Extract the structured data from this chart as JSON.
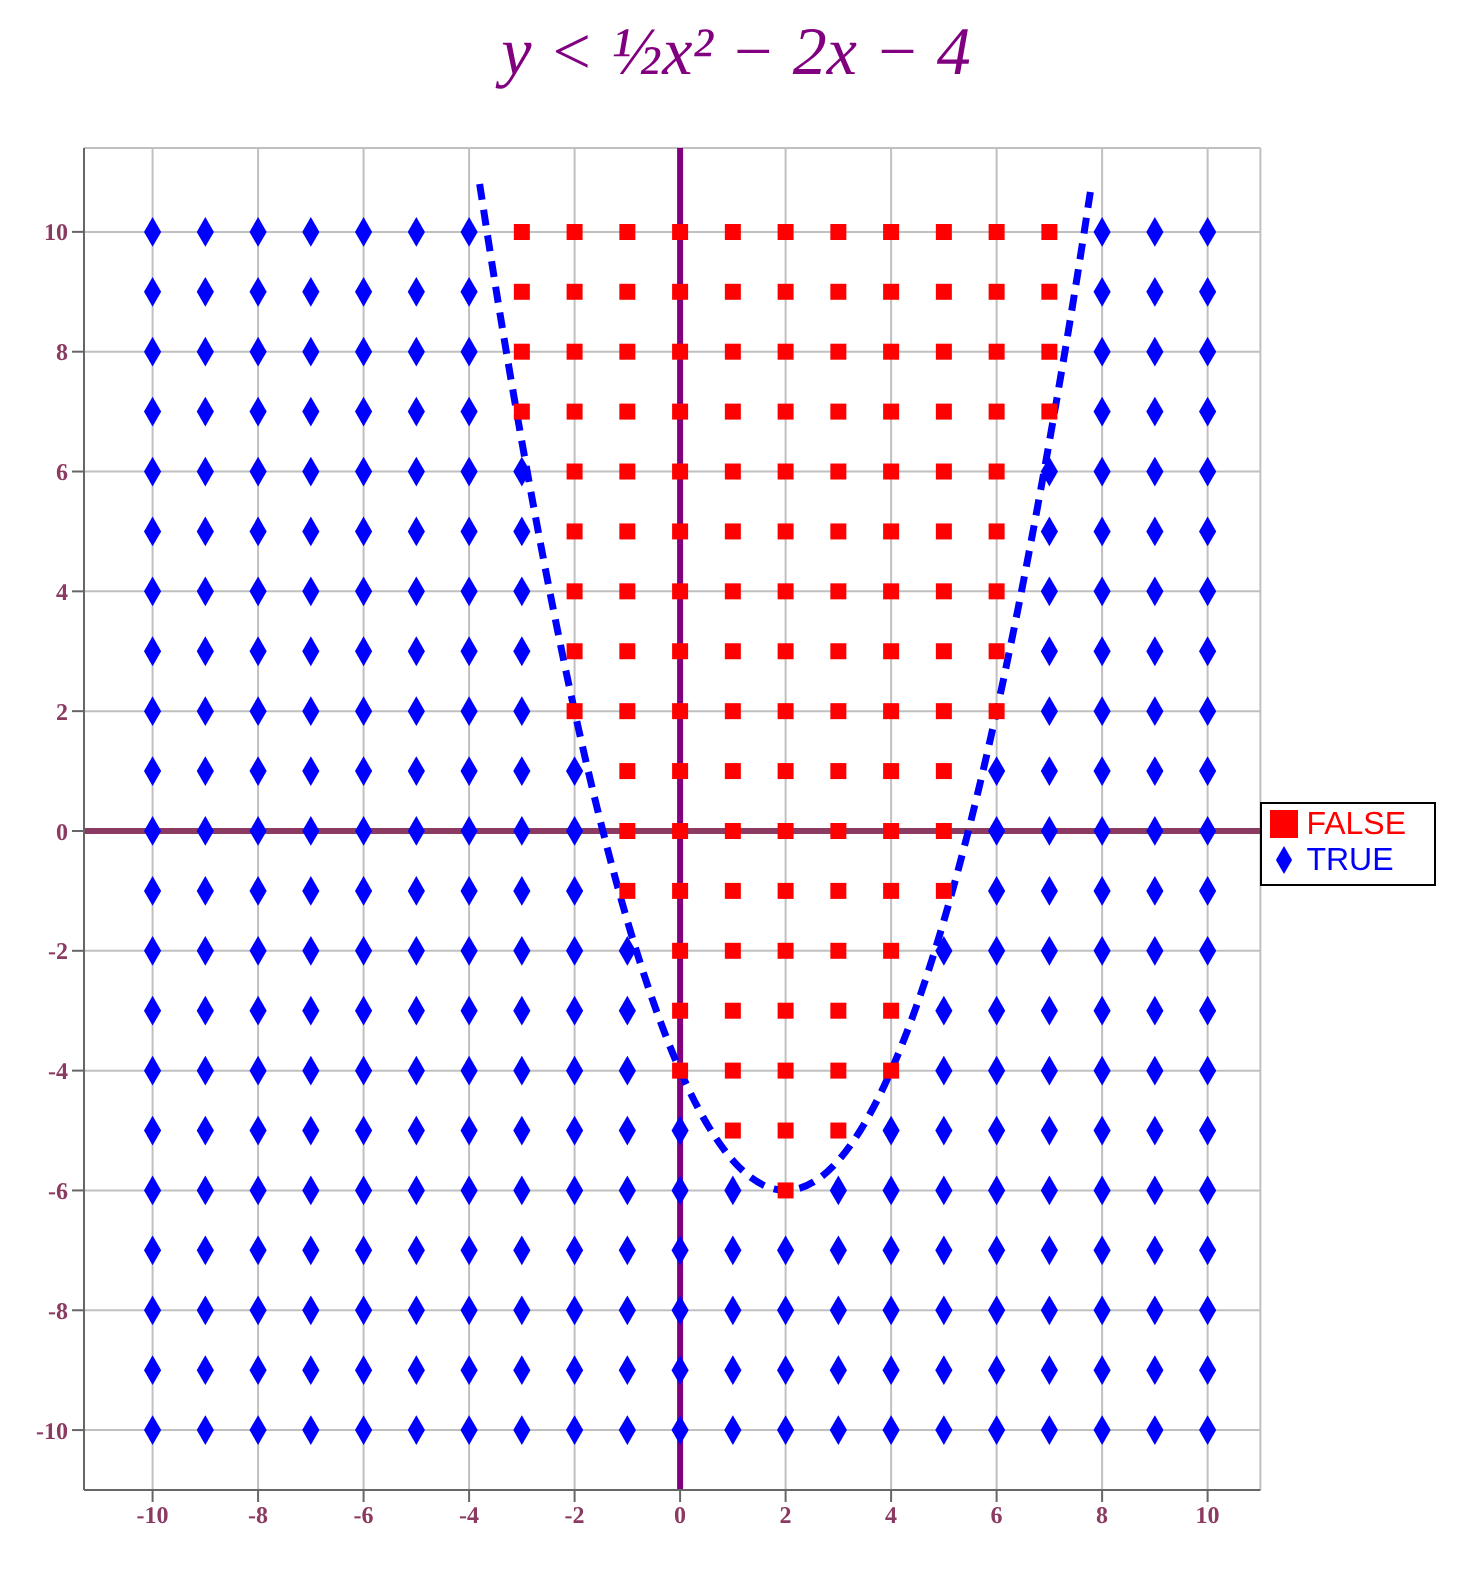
{
  "chart_data": {
    "type": "scatter",
    "title": "y < ½x² − 2x − 4",
    "xlim": [
      -11.3,
      11
    ],
    "ylim": [
      -11,
      11.4
    ],
    "xticks": [
      -10,
      -8,
      -6,
      -4,
      -2,
      0,
      2,
      4,
      6,
      8,
      10
    ],
    "yticks": [
      -10,
      -8,
      -6,
      -4,
      -2,
      0,
      2,
      4,
      6,
      8,
      10
    ],
    "grid": true,
    "legend": "right",
    "ref_lines": [
      {
        "axis": "y",
        "value": 0,
        "color": "#8b3a62"
      },
      {
        "axis": "x",
        "value": 0,
        "color": "#800080"
      }
    ],
    "series": [
      {
        "name": "TRUE",
        "color": "#0000ff",
        "marker": "diamond",
        "x": [
          -10,
          -10,
          -10,
          -10,
          -10,
          -10,
          -10,
          -10,
          -10,
          -10,
          -10,
          -10,
          -10,
          -10,
          -10,
          -10,
          -10,
          -10,
          -10,
          -10,
          -10,
          -9,
          -9,
          -9,
          -9,
          -9,
          -9,
          -9,
          -9,
          -9,
          -9,
          -9,
          -9,
          -9,
          -9,
          -9,
          -9,
          -9,
          -9,
          -9,
          -9,
          -9,
          -8,
          -8,
          -8,
          -8,
          -8,
          -8,
          -8,
          -8,
          -8,
          -8,
          -8,
          -8,
          -8,
          -8,
          -8,
          -8,
          -8,
          -8,
          -8,
          -8,
          -8,
          -7,
          -7,
          -7,
          -7,
          -7,
          -7,
          -7,
          -7,
          -7,
          -7,
          -7,
          -7,
          -7,
          -7,
          -7,
          -7,
          -7,
          -7,
          -7,
          -7,
          -7,
          -6,
          -6,
          -6,
          -6,
          -6,
          -6,
          -6,
          -6,
          -6,
          -6,
          -6,
          -6,
          -6,
          -6,
          -6,
          -6,
          -6,
          -6,
          -6,
          -6,
          -6,
          -5,
          -5,
          -5,
          -5,
          -5,
          -5,
          -5,
          -5,
          -5,
          -5,
          -5,
          -5,
          -5,
          -5,
          -5,
          -5,
          -5,
          -5,
          -5,
          -5,
          -5,
          -4,
          -4,
          -4,
          -4,
          -4,
          -4,
          -4,
          -4,
          -4,
          -4,
          -4,
          -4,
          -4,
          -4,
          -4,
          -4,
          -4,
          -4,
          -4,
          -4,
          -4,
          -3,
          -3,
          -3,
          -3,
          -3,
          -3,
          -3,
          -3,
          -3,
          -3,
          -3,
          -3,
          -3,
          -3,
          -3,
          -3,
          -3,
          -2,
          -2,
          -2,
          -2,
          -2,
          -2,
          -2,
          -2,
          -2,
          -2,
          -2,
          -2,
          -1,
          -1,
          -1,
          -1,
          -1,
          -1,
          -1,
          -1,
          -1,
          0,
          0,
          0,
          0,
          0,
          0,
          1,
          1,
          1,
          1,
          1,
          2,
          2,
          2,
          2,
          3,
          3,
          3,
          3,
          3,
          4,
          4,
          4,
          4,
          4,
          4,
          5,
          5,
          5,
          5,
          5,
          5,
          5,
          5,
          5,
          6,
          6,
          6,
          6,
          6,
          6,
          6,
          6,
          6,
          6,
          6,
          6,
          7,
          7,
          7,
          7,
          7,
          7,
          7,
          7,
          7,
          7,
          7,
          7,
          7,
          7,
          7,
          7,
          7,
          8,
          8,
          8,
          8,
          8,
          8,
          8,
          8,
          8,
          8,
          8,
          8,
          8,
          8,
          8,
          8,
          8,
          8,
          8,
          8,
          8,
          9,
          9,
          9,
          9,
          9,
          9,
          9,
          9,
          9,
          9,
          9,
          9,
          9,
          9,
          9,
          9,
          9,
          9,
          9,
          9,
          9,
          10,
          10,
          10,
          10,
          10,
          10,
          10,
          10,
          10,
          10,
          10,
          10,
          10,
          10,
          10,
          10,
          10,
          10,
          10,
          10,
          10
        ],
        "values": [
          -10,
          -9,
          -8,
          -7,
          -6,
          -5,
          -4,
          -3,
          -2,
          -1,
          0,
          1,
          2,
          3,
          4,
          5,
          6,
          7,
          8,
          9,
          10,
          -10,
          -9,
          -8,
          -7,
          -6,
          -5,
          -4,
          -3,
          -2,
          -1,
          0,
          1,
          2,
          3,
          4,
          5,
          6,
          7,
          8,
          9,
          10,
          -10,
          -9,
          -8,
          -7,
          -6,
          -5,
          -4,
          -3,
          -2,
          -1,
          0,
          1,
          2,
          3,
          4,
          5,
          6,
          7,
          8,
          9,
          10,
          -10,
          -9,
          -8,
          -7,
          -6,
          -5,
          -4,
          -3,
          -2,
          -1,
          0,
          1,
          2,
          3,
          4,
          5,
          6,
          7,
          8,
          9,
          10,
          -10,
          -9,
          -8,
          -7,
          -6,
          -5,
          -4,
          -3,
          -2,
          -1,
          0,
          1,
          2,
          3,
          4,
          5,
          6,
          7,
          8,
          9,
          10,
          -10,
          -9,
          -8,
          -7,
          -6,
          -5,
          -4,
          -3,
          -2,
          -1,
          0,
          1,
          2,
          3,
          4,
          5,
          6,
          7,
          8,
          9,
          10,
          -10,
          -9,
          -8,
          -7,
          -6,
          -5,
          -4,
          -3,
          -2,
          -1,
          0,
          1,
          2,
          3,
          4,
          5,
          6,
          7,
          8,
          9,
          10,
          -10,
          -9,
          -8,
          -7,
          -6,
          -5,
          -4,
          -3,
          -2,
          -1,
          0,
          1,
          2,
          3,
          4,
          5,
          6,
          -10,
          -9,
          -8,
          -7,
          -6,
          -5,
          -4,
          -3,
          -2,
          -1,
          0,
          1,
          -10,
          -9,
          -8,
          -7,
          -6,
          -5,
          -4,
          -3,
          -2,
          -10,
          -9,
          -8,
          -7,
          -6,
          -5,
          -10,
          -9,
          -8,
          -7,
          -6,
          -10,
          -9,
          -8,
          -7,
          -10,
          -9,
          -8,
          -7,
          -6,
          -10,
          -9,
          -8,
          -7,
          -6,
          -5,
          -10,
          -9,
          -8,
          -7,
          -6,
          -5,
          -4,
          -3,
          -2,
          -10,
          -9,
          -8,
          -7,
          -6,
          -5,
          -4,
          -3,
          -2,
          -1,
          0,
          1,
          -10,
          -9,
          -8,
          -7,
          -6,
          -5,
          -4,
          -3,
          -2,
          -1,
          0,
          1,
          2,
          3,
          4,
          5,
          6,
          -10,
          -9,
          -8,
          -7,
          -6,
          -5,
          -4,
          -3,
          -2,
          -1,
          0,
          1,
          2,
          3,
          4,
          5,
          6,
          7,
          8,
          9,
          10,
          -10,
          -9,
          -8,
          -7,
          -6,
          -5,
          -4,
          -3,
          -2,
          -1,
          0,
          1,
          2,
          3,
          4,
          5,
          6,
          7,
          8,
          9,
          10,
          -10,
          -9,
          -8,
          -7,
          -6,
          -5,
          -4,
          -3,
          -2,
          -1,
          0,
          1,
          2,
          3,
          4,
          5,
          6,
          7,
          8,
          9,
          10
        ]
      },
      {
        "name": "FALSE",
        "color": "#ff0000",
        "marker": "square",
        "x": [
          -3,
          -3,
          -3,
          -3,
          -2,
          -2,
          -2,
          -2,
          -2,
          -2,
          -2,
          -2,
          -2,
          -1,
          -1,
          -1,
          -1,
          -1,
          -1,
          -1,
          -1,
          -1,
          -1,
          -1,
          -1,
          0,
          0,
          0,
          0,
          0,
          0,
          0,
          0,
          0,
          0,
          0,
          0,
          0,
          0,
          0,
          1,
          1,
          1,
          1,
          1,
          1,
          1,
          1,
          1,
          1,
          1,
          1,
          1,
          1,
          1,
          1,
          2,
          2,
          2,
          2,
          2,
          2,
          2,
          2,
          2,
          2,
          2,
          2,
          2,
          2,
          2,
          2,
          2,
          3,
          3,
          3,
          3,
          3,
          3,
          3,
          3,
          3,
          3,
          3,
          3,
          3,
          3,
          3,
          3,
          4,
          4,
          4,
          4,
          4,
          4,
          4,
          4,
          4,
          4,
          4,
          4,
          4,
          4,
          4,
          5,
          5,
          5,
          5,
          5,
          5,
          5,
          5,
          5,
          5,
          5,
          5,
          6,
          6,
          6,
          6,
          6,
          6,
          6,
          6,
          6,
          7,
          7,
          7,
          7
        ],
        "values": [
          7,
          8,
          9,
          10,
          2,
          3,
          4,
          5,
          6,
          7,
          8,
          9,
          10,
          -1,
          0,
          1,
          2,
          3,
          4,
          5,
          6,
          7,
          8,
          9,
          10,
          -4,
          -3,
          -2,
          -1,
          0,
          1,
          2,
          3,
          4,
          5,
          6,
          7,
          8,
          9,
          10,
          -5,
          -4,
          -3,
          -2,
          -1,
          0,
          1,
          2,
          3,
          4,
          5,
          6,
          7,
          8,
          9,
          10,
          -6,
          -5,
          -4,
          -3,
          -2,
          -1,
          0,
          1,
          2,
          3,
          4,
          5,
          6,
          7,
          8,
          9,
          10,
          -5,
          -4,
          -3,
          -2,
          -1,
          0,
          1,
          2,
          3,
          4,
          5,
          6,
          7,
          8,
          9,
          10,
          -4,
          -3,
          -2,
          -1,
          0,
          1,
          2,
          3,
          4,
          5,
          6,
          7,
          8,
          9,
          10,
          -1,
          0,
          1,
          2,
          3,
          4,
          5,
          6,
          7,
          8,
          9,
          10,
          2,
          3,
          4,
          5,
          6,
          7,
          8,
          9,
          10,
          7,
          8,
          9,
          10
        ]
      },
      {
        "type": "line",
        "color": "#0000ff",
        "marker": "none",
        "line_style": "dashed",
        "x": [
          -3.8,
          -3.5,
          -3,
          -2,
          -1,
          0,
          1,
          2,
          3,
          4,
          5,
          6,
          7,
          7.5,
          7.8
        ],
        "values": [
          10.8,
          9.1,
          6.5,
          2,
          -1.5,
          -4,
          -5.5,
          -6,
          -5.5,
          -4,
          -1.5,
          2,
          6.5,
          9.1,
          10.8
        ]
      }
    ]
  }
}
